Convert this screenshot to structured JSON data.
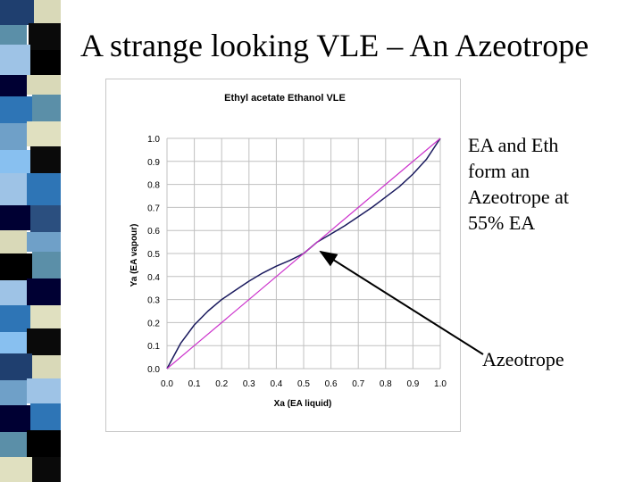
{
  "slide": {
    "title": "A strange looking VLE – An Azeotrope",
    "note_lines": [
      "EA and Eth",
      "form an",
      "Azeotrope at",
      "55% EA"
    ],
    "arrow_label": "Azeotrope"
  },
  "colors": {
    "curve": "#1a1a5e",
    "diagonal": "#cc33cc",
    "grid": "#c0c0c0",
    "arrow": "#000000",
    "stripe": [
      "#1f3f6f",
      "#5b8fa8",
      "#9ec3e6",
      "#d9d9b8",
      "#2e75b6",
      "#0a0a0a",
      "#6fa0c8",
      "#000000",
      "#88c0f0",
      "#000033",
      "#e0e0c0",
      "#2b4f7f"
    ]
  },
  "chart_data": {
    "type": "line",
    "title": "Ethyl acetate Ethanol VLE",
    "xlabel": "Xa (EA liquid)",
    "ylabel": "Ya (EA vapour)",
    "xlim": [
      0,
      1
    ],
    "ylim": [
      0,
      1
    ],
    "grid": true,
    "legend": "none",
    "x_ticks": [
      "0.0",
      "0.1",
      "0.2",
      "0.3",
      "0.4",
      "0.5",
      "0.6",
      "0.7",
      "0.8",
      "0.9",
      "1.0"
    ],
    "y_ticks": [
      "0.0",
      "0.1",
      "0.2",
      "0.3",
      "0.4",
      "0.5",
      "0.6",
      "0.7",
      "0.8",
      "0.9",
      "1.0"
    ],
    "series": [
      {
        "x": [
          0.0,
          0.05,
          0.1,
          0.15,
          0.2,
          0.25,
          0.3,
          0.35,
          0.4,
          0.45,
          0.5,
          0.55,
          0.6,
          0.65,
          0.7,
          0.75,
          0.8,
          0.85,
          0.9,
          0.95,
          1.0
        ],
        "y": [
          0.0,
          0.11,
          0.19,
          0.25,
          0.3,
          0.34,
          0.38,
          0.415,
          0.445,
          0.47,
          0.5,
          0.55,
          0.585,
          0.62,
          0.66,
          0.7,
          0.745,
          0.79,
          0.845,
          0.91,
          1.0
        ]
      },
      {
        "x": [
          0.0,
          1.0
        ],
        "y": [
          0.0,
          1.0
        ]
      }
    ]
  }
}
